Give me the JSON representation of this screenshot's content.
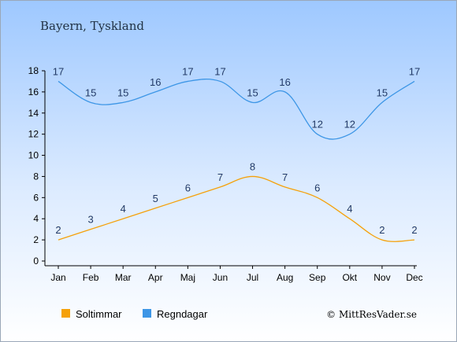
{
  "chart_data": {
    "type": "line",
    "title": "Bayern, Tyskland",
    "categories": [
      "Jan",
      "Feb",
      "Mar",
      "Apr",
      "Maj",
      "Jun",
      "Jul",
      "Aug",
      "Sep",
      "Okt",
      "Nov",
      "Dec"
    ],
    "series": [
      {
        "name": "Soltimmar",
        "color": "#f5a10a",
        "values": [
          2,
          3,
          4,
          5,
          6,
          7,
          8,
          7,
          6,
          4,
          2,
          2
        ]
      },
      {
        "name": "Regndagar",
        "color": "#3d96e6",
        "values": [
          17,
          15,
          15,
          16,
          17,
          17,
          15,
          16,
          12,
          12,
          15,
          17
        ]
      }
    ],
    "yticks": [
      0,
      2,
      4,
      6,
      8,
      10,
      12,
      14,
      16,
      18
    ],
    "ylim": [
      0,
      18
    ],
    "grid": false,
    "legend_position": "bottom-left",
    "credit": "© MittResVader.se"
  }
}
